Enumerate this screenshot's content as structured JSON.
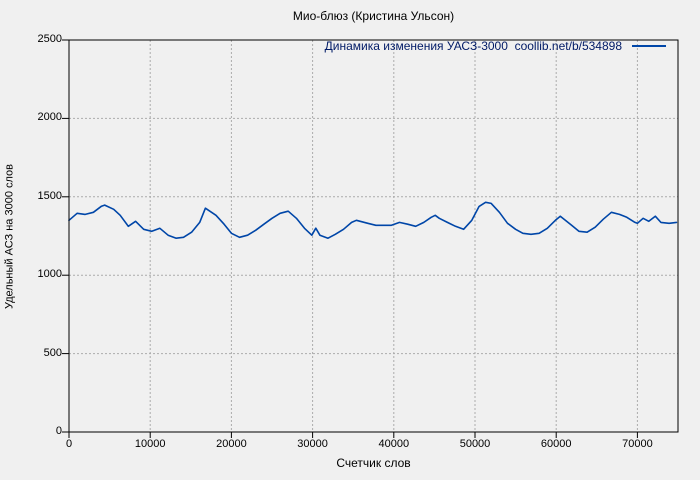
{
  "chart_data": {
    "type": "line",
    "title": "Мио-блюз (Кристина Ульсон)",
    "xlabel": "Счетчик слов",
    "ylabel": "Удельный АСЗ на 3000 слов",
    "legend": "Динамика изменения УАСЗ-3000  coollib.net/b/534898",
    "legend_position": "top-right-inside",
    "grid": true,
    "xlim": [
      0,
      75000
    ],
    "ylim": [
      0,
      2500
    ],
    "x_ticks": [
      0,
      10000,
      20000,
      30000,
      40000,
      50000,
      60000,
      70000
    ],
    "y_ticks": [
      0,
      500,
      1000,
      1500,
      2000,
      2500
    ],
    "colors": {
      "line": "#0046a8",
      "legend_text": "#001a66",
      "background": "#f0f0f0",
      "grid": "#ababab",
      "border": "#000000",
      "text": "#000000"
    },
    "series": [
      {
        "name": "Динамика изменения УАСЗ-3000  coollib.net/b/534898",
        "x": [
          0,
          1000,
          2000,
          3000,
          4000,
          4400,
          5500,
          6300,
          7300,
          8200,
          9200,
          10200,
          11200,
          12200,
          13200,
          14100,
          15100,
          16100,
          16800,
          18100,
          19100,
          20000,
          21000,
          22000,
          23000,
          24000,
          25000,
          26000,
          27000,
          28000,
          29000,
          29900,
          30400,
          30900,
          31900,
          32800,
          33800,
          34800,
          35400,
          36800,
          37800,
          38700,
          39700,
          40700,
          41700,
          42700,
          43700,
          44600,
          45100,
          45600,
          46600,
          47600,
          48600,
          49600,
          50500,
          51300,
          52000,
          53000,
          54000,
          55000,
          55900,
          56900,
          57900,
          58900,
          59900,
          60500,
          61900,
          62800,
          63800,
          64800,
          65800,
          66800,
          67800,
          68700,
          69700,
          70000,
          70700,
          71400,
          72200,
          72900,
          73900,
          74800
        ],
        "y": [
          1350,
          1395,
          1388,
          1401,
          1440,
          1447,
          1420,
          1382,
          1312,
          1344,
          1293,
          1280,
          1299,
          1255,
          1236,
          1242,
          1274,
          1337,
          1427,
          1382,
          1325,
          1267,
          1242,
          1255,
          1287,
          1325,
          1363,
          1395,
          1408,
          1363,
          1299,
          1255,
          1300,
          1255,
          1236,
          1261,
          1293,
          1337,
          1350,
          1331,
          1318,
          1318,
          1318,
          1337,
          1325,
          1312,
          1337,
          1369,
          1382,
          1363,
          1337,
          1312,
          1293,
          1350,
          1439,
          1465,
          1458,
          1401,
          1331,
          1293,
          1267,
          1261,
          1267,
          1299,
          1350,
          1376,
          1318,
          1280,
          1274,
          1306,
          1357,
          1401,
          1388,
          1369,
          1337,
          1331,
          1363,
          1344,
          1376,
          1337,
          1331,
          1337
        ]
      }
    ]
  }
}
